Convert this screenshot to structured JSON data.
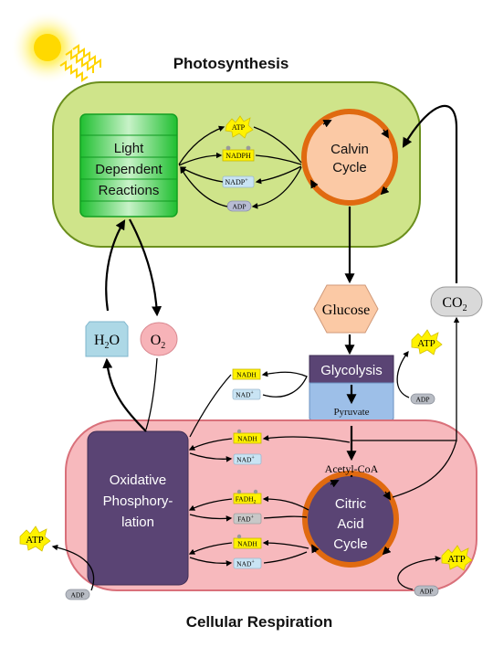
{
  "titles": {
    "photosynthesis": "Photosynthesis",
    "cellular_respiration": "Cellular Respiration"
  },
  "photosynthesis": {
    "light_reactions": [
      "Light",
      "Dependent",
      "Reactions"
    ],
    "calvin_cycle": [
      "Calvin",
      "Cycle"
    ],
    "carriers": {
      "atp": "ATP",
      "nadph": "NADPH",
      "nadp": "NADP",
      "nadp_sup": "+",
      "adp": "ADP"
    }
  },
  "molecules": {
    "glucose": "Glucose",
    "co2_main": "CO",
    "co2_sub": "2",
    "h2o_h": "H",
    "h2o_sub": "2",
    "h2o_o": "O",
    "o2_main": "O",
    "o2_sub": "2"
  },
  "glycolysis": {
    "label": "Glycolysis",
    "pyruvate": "Pyruvate",
    "nadh": "NADH",
    "nad": "NAD",
    "nad_sup": "+",
    "atp": "ATP",
    "adp": "ADP"
  },
  "respiration": {
    "acetyl_coa": "Acetyl-CoA",
    "oxidative": [
      "Oxidative",
      "Phosphory-",
      "lation"
    ],
    "citric": [
      "Citric",
      "Acid",
      "Cycle"
    ],
    "nadh": "NADH",
    "nad": "NAD",
    "nad_sup": "+",
    "fadh_main": "FADH",
    "fadh_sub": "2",
    "fad": "FAD",
    "fad_sup": "+",
    "atp_left": "ATP",
    "adp_left": "ADP",
    "atp_right": "ATP",
    "adp_right": "ADP"
  },
  "colors": {
    "chloroplast_fill": "#cfe48a",
    "chloroplast_stroke": "#6b8f1d",
    "mito_fill": "#f7b9bd",
    "mito_stroke": "#d9707a",
    "purple": "#5a4474",
    "orange": "#e06a10",
    "calvin_fill": "#fbc9a5",
    "atp_yellow": "#fff200",
    "gray_pill": "#b8bcc4",
    "light_blue": "#bfe0ee",
    "water_blue": "#add8e6",
    "oxygen_pink": "#f7b3b8",
    "green_box": "#27c23a"
  }
}
